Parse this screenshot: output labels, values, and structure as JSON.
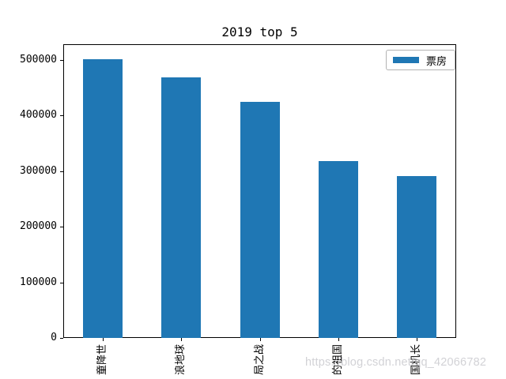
{
  "watermark_text": "https://blog.csdn.net/qq_42066782",
  "colors": {
    "bar": "#1f77b4",
    "spine": "#000000",
    "legend_border": "#b3b3b3",
    "watermark": "#c8c8cd",
    "background": "#ffffff"
  },
  "legend": {
    "label": "票房",
    "position": "upper right"
  },
  "chart_data": {
    "type": "bar",
    "title": "2019 top 5",
    "categories": [
      "童降世",
      "浪地球",
      "局之战",
      "的祖国",
      "国机长"
    ],
    "categories_note": "x tick labels rotated 90° (read bottom-to-top), clipped by image bottom edge",
    "series": [
      {
        "name": "票房",
        "values": [
          501300,
          468700,
          424100,
          317500,
          291200
        ]
      }
    ],
    "xlabel": "",
    "ylabel": "",
    "y_ticks": [
      0,
      100000,
      200000,
      300000,
      400000,
      500000
    ],
    "ylim": [
      0,
      528000
    ],
    "grid": false,
    "legend_position": "upper right",
    "bar_color": "#1f77b4"
  }
}
